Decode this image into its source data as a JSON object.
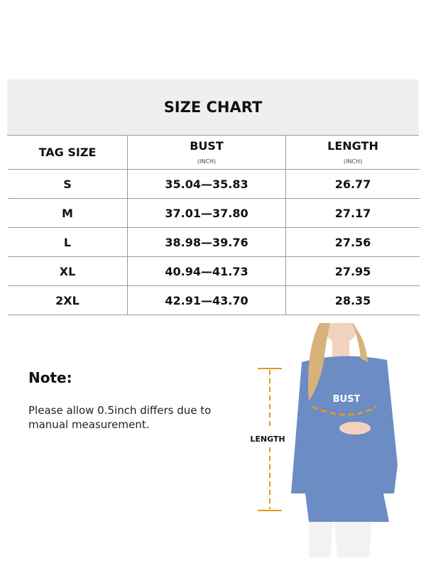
{
  "title": "SIZE CHART",
  "columns": [
    {
      "label": "TAG SIZE",
      "unit": ""
    },
    {
      "label": "BUST",
      "unit": "(INCH)"
    },
    {
      "label": "LENGTH",
      "unit": "(INCH)"
    }
  ],
  "rows": [
    {
      "size": "S",
      "bust": "35.04—35.83",
      "length": "26.77"
    },
    {
      "size": "M",
      "bust": "37.01—37.80",
      "length": "27.17"
    },
    {
      "size": "L",
      "bust": "38.98—39.76",
      "length": "27.56"
    },
    {
      "size": "XL",
      "bust": "40.94—41.73",
      "length": "27.95"
    },
    {
      "size": "2XL",
      "bust": "42.91—43.70",
      "length": "28.35"
    }
  ],
  "note": {
    "title": "Note:",
    "text": "Please allow 0.5inch differs due to manual measurement."
  },
  "figure": {
    "bust_label": "BUST",
    "length_label": "LENGTH",
    "marker_color": "#e8961e",
    "garment_color": "#6c8cc4"
  }
}
